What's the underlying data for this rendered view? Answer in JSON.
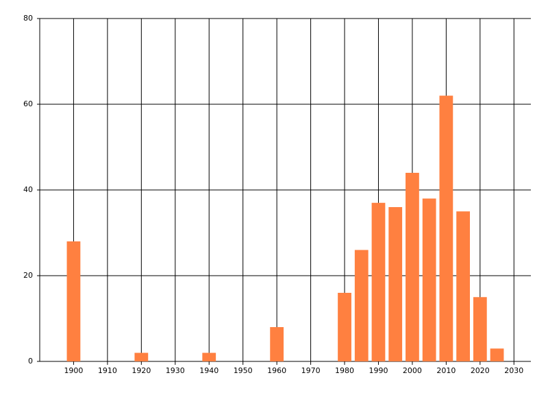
{
  "chart_data": {
    "type": "bar",
    "x": [
      1900,
      1920,
      1940,
      1960,
      1980,
      1985,
      1990,
      1995,
      2000,
      2005,
      2010,
      2015,
      2020,
      2025
    ],
    "values": [
      28,
      2,
      2,
      8,
      16,
      26,
      37,
      36,
      44,
      38,
      62,
      35,
      15,
      3
    ],
    "color": "#ff8040",
    "xlim": [
      1890,
      2035
    ],
    "xticks": [
      1900,
      1910,
      1920,
      1930,
      1940,
      1950,
      1960,
      1970,
      1980,
      1990,
      2000,
      2010,
      2020,
      2030
    ],
    "ylim": [
      0,
      80
    ],
    "yticks": [
      0,
      20,
      40,
      60,
      80
    ],
    "grid": true
  }
}
